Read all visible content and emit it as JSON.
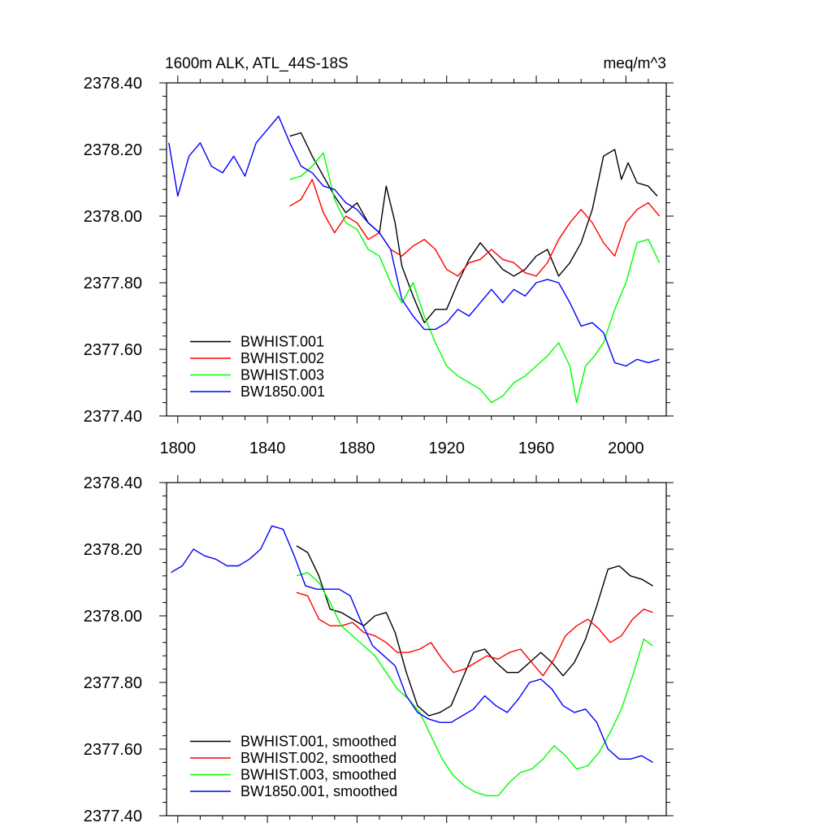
{
  "chart_data": [
    {
      "type": "line",
      "title_left": "1600m ALK, ATL_44S-18S",
      "title_right": "meq/m^3",
      "ylim": [
        2377.4,
        2378.4
      ],
      "xlim": [
        1795,
        2018
      ],
      "yticks": [
        "2377.40",
        "2377.60",
        "2377.80",
        "2378.00",
        "2378.20",
        "2378.40"
      ],
      "ytick_values": [
        2377.4,
        2377.6,
        2377.8,
        2378.0,
        2378.2,
        2378.4
      ],
      "xticks": [
        "1800",
        "1840",
        "1880",
        "1920",
        "1960",
        "2000"
      ],
      "xtick_values": [
        1800,
        1840,
        1880,
        1920,
        1960,
        2000
      ],
      "show_xtick_labels": true,
      "legend_placement": "bottom-left",
      "series": [
        {
          "name": "BWHIST.001",
          "color": "#000000",
          "x": [
            1850,
            1855,
            1860,
            1865,
            1870,
            1875,
            1880,
            1885,
            1890,
            1893,
            1897,
            1900,
            1905,
            1910,
            1915,
            1920,
            1925,
            1930,
            1935,
            1940,
            1945,
            1950,
            1955,
            1960,
            1965,
            1970,
            1975,
            1980,
            1985,
            1990,
            1995,
            1998,
            2001,
            2005,
            2010,
            2014
          ],
          "y": [
            2378.24,
            2378.25,
            2378.18,
            2378.12,
            2378.06,
            2378.01,
            2378.04,
            2377.98,
            2377.95,
            2378.09,
            2377.98,
            2377.85,
            2377.76,
            2377.68,
            2377.72,
            2377.72,
            2377.8,
            2377.87,
            2377.92,
            2377.88,
            2377.84,
            2377.82,
            2377.84,
            2377.88,
            2377.9,
            2377.82,
            2377.86,
            2377.92,
            2378.02,
            2378.18,
            2378.2,
            2378.11,
            2378.16,
            2378.1,
            2378.09,
            2378.06
          ]
        },
        {
          "name": "BWHIST.002",
          "color": "#ff0000",
          "x": [
            1850,
            1855,
            1860,
            1865,
            1870,
            1875,
            1880,
            1885,
            1890,
            1895,
            1900,
            1905,
            1910,
            1915,
            1920,
            1925,
            1930,
            1935,
            1940,
            1945,
            1950,
            1955,
            1960,
            1965,
            1970,
            1975,
            1980,
            1985,
            1990,
            1995,
            2000,
            2005,
            2010,
            2015
          ],
          "y": [
            2378.03,
            2378.05,
            2378.11,
            2378.01,
            2377.95,
            2378.0,
            2377.98,
            2377.93,
            2377.95,
            2377.9,
            2377.88,
            2377.91,
            2377.93,
            2377.9,
            2377.84,
            2377.82,
            2377.86,
            2377.87,
            2377.9,
            2377.87,
            2377.86,
            2377.83,
            2377.82,
            2377.86,
            2377.93,
            2377.98,
            2378.02,
            2377.98,
            2377.92,
            2377.88,
            2377.98,
            2378.02,
            2378.04,
            2378.0
          ]
        },
        {
          "name": "BWHIST.003",
          "color": "#00ff00",
          "x": [
            1850,
            1855,
            1860,
            1865,
            1870,
            1875,
            1880,
            1885,
            1890,
            1895,
            1900,
            1905,
            1910,
            1915,
            1920,
            1925,
            1930,
            1935,
            1940,
            1945,
            1950,
            1955,
            1960,
            1965,
            1970,
            1975,
            1978,
            1982,
            1986,
            1990,
            1995,
            2000,
            2005,
            2010,
            2015
          ],
          "y": [
            2378.11,
            2378.12,
            2378.15,
            2378.19,
            2378.05,
            2377.98,
            2377.96,
            2377.9,
            2377.88,
            2377.8,
            2377.74,
            2377.8,
            2377.7,
            2377.62,
            2377.55,
            2377.52,
            2377.5,
            2377.48,
            2377.44,
            2377.46,
            2377.5,
            2377.52,
            2377.55,
            2377.58,
            2377.62,
            2377.55,
            2377.44,
            2377.55,
            2377.58,
            2377.62,
            2377.72,
            2377.8,
            2377.92,
            2377.93,
            2377.86
          ]
        },
        {
          "name": "BW1850.001",
          "color": "#0000ff",
          "x": [
            1796,
            1800,
            1805,
            1810,
            1815,
            1820,
            1825,
            1830,
            1835,
            1840,
            1845,
            1850,
            1855,
            1860,
            1865,
            1870,
            1875,
            1880,
            1885,
            1890,
            1895,
            1900,
            1905,
            1910,
            1915,
            1920,
            1925,
            1930,
            1935,
            1940,
            1945,
            1950,
            1955,
            1960,
            1965,
            1970,
            1975,
            1980,
            1985,
            1990,
            1995,
            2000,
            2005,
            2010,
            2015
          ],
          "y": [
            2378.22,
            2378.06,
            2378.18,
            2378.22,
            2378.15,
            2378.13,
            2378.18,
            2378.12,
            2378.22,
            2378.26,
            2378.3,
            2378.22,
            2378.15,
            2378.13,
            2378.09,
            2378.08,
            2378.04,
            2378.02,
            2377.98,
            2377.95,
            2377.9,
            2377.75,
            2377.7,
            2377.66,
            2377.66,
            2377.68,
            2377.72,
            2377.7,
            2377.74,
            2377.78,
            2377.74,
            2377.78,
            2377.76,
            2377.8,
            2377.81,
            2377.8,
            2377.74,
            2377.67,
            2377.68,
            2377.65,
            2377.56,
            2377.55,
            2377.57,
            2377.56,
            2377.57
          ]
        }
      ]
    },
    {
      "type": "line",
      "ylim": [
        2377.4,
        2378.4
      ],
      "xlim": [
        1795,
        2018
      ],
      "yticks": [
        "2377.40",
        "2377.60",
        "2377.80",
        "2378.00",
        "2378.20",
        "2378.40"
      ],
      "ytick_values": [
        2377.4,
        2377.6,
        2377.8,
        2378.0,
        2378.2,
        2378.4
      ],
      "xtick_values": [
        1800,
        1840,
        1880,
        1920,
        1960,
        2000
      ],
      "show_xtick_labels": false,
      "legend_placement": "bottom-left",
      "series": [
        {
          "name": "BWHIST.001, smoothed",
          "color": "#000000",
          "x": [
            1853,
            1858,
            1863,
            1868,
            1873,
            1878,
            1883,
            1888,
            1893,
            1897,
            1902,
            1907,
            1912,
            1917,
            1922,
            1927,
            1932,
            1937,
            1942,
            1947,
            1952,
            1957,
            1962,
            1967,
            1972,
            1977,
            1982,
            1987,
            1992,
            1997,
            2002,
            2007,
            2012
          ],
          "y": [
            2378.21,
            2378.19,
            2378.12,
            2378.02,
            2378.01,
            2377.99,
            2377.97,
            2378.0,
            2378.01,
            2377.95,
            2377.83,
            2377.73,
            2377.7,
            2377.71,
            2377.73,
            2377.81,
            2377.89,
            2377.9,
            2377.86,
            2377.83,
            2377.83,
            2377.86,
            2377.89,
            2377.86,
            2377.82,
            2377.86,
            2377.93,
            2378.03,
            2378.14,
            2378.15,
            2378.12,
            2378.11,
            2378.09
          ]
        },
        {
          "name": "BWHIST.002, smoothed",
          "color": "#ff0000",
          "x": [
            1853,
            1858,
            1863,
            1868,
            1873,
            1878,
            1883,
            1888,
            1893,
            1898,
            1903,
            1908,
            1913,
            1918,
            1923,
            1928,
            1933,
            1938,
            1943,
            1948,
            1953,
            1958,
            1963,
            1968,
            1973,
            1978,
            1983,
            1988,
            1993,
            1998,
            2003,
            2008,
            2012
          ],
          "y": [
            2378.07,
            2378.06,
            2377.99,
            2377.97,
            2377.97,
            2377.98,
            2377.95,
            2377.94,
            2377.92,
            2377.89,
            2377.89,
            2377.9,
            2377.92,
            2377.87,
            2377.83,
            2377.84,
            2377.86,
            2377.88,
            2377.87,
            2377.89,
            2377.9,
            2377.86,
            2377.82,
            2377.87,
            2377.94,
            2377.97,
            2377.99,
            2377.96,
            2377.92,
            2377.94,
            2377.99,
            2378.02,
            2378.01
          ]
        },
        {
          "name": "BWHIST.003, smoothed",
          "color": "#00ff00",
          "x": [
            1853,
            1858,
            1863,
            1868,
            1873,
            1878,
            1883,
            1888,
            1893,
            1898,
            1903,
            1908,
            1913,
            1918,
            1923,
            1928,
            1933,
            1938,
            1943,
            1948,
            1953,
            1958,
            1963,
            1968,
            1973,
            1978,
            1983,
            1988,
            1993,
            1998,
            2003,
            2008,
            2012
          ],
          "y": [
            2378.12,
            2378.13,
            2378.1,
            2378.04,
            2377.97,
            2377.94,
            2377.91,
            2377.88,
            2377.83,
            2377.78,
            2377.75,
            2377.71,
            2377.64,
            2377.57,
            2377.52,
            2377.49,
            2377.47,
            2377.46,
            2377.46,
            2377.5,
            2377.53,
            2377.54,
            2377.57,
            2377.61,
            2377.58,
            2377.54,
            2377.55,
            2377.59,
            2377.65,
            2377.72,
            2377.82,
            2377.93,
            2377.91
          ]
        },
        {
          "name": "BW1850.001, smoothed",
          "color": "#0000ff",
          "x": [
            1797,
            1802,
            1807,
            1812,
            1817,
            1822,
            1827,
            1832,
            1837,
            1842,
            1847,
            1852,
            1857,
            1862,
            1867,
            1872,
            1877,
            1882,
            1887,
            1892,
            1897,
            1902,
            1907,
            1912,
            1917,
            1922,
            1927,
            1932,
            1937,
            1942,
            1947,
            1952,
            1957,
            1962,
            1967,
            1972,
            1977,
            1982,
            1987,
            1992,
            1997,
            2002,
            2007,
            2012
          ],
          "y": [
            2378.13,
            2378.15,
            2378.2,
            2378.18,
            2378.17,
            2378.15,
            2378.15,
            2378.17,
            2378.2,
            2378.27,
            2378.26,
            2378.18,
            2378.09,
            2378.08,
            2378.08,
            2378.08,
            2378.06,
            2377.98,
            2377.91,
            2377.88,
            2377.85,
            2377.76,
            2377.71,
            2377.69,
            2377.68,
            2377.68,
            2377.7,
            2377.72,
            2377.76,
            2377.73,
            2377.71,
            2377.75,
            2377.8,
            2377.81,
            2377.78,
            2377.73,
            2377.71,
            2377.72,
            2377.68,
            2377.6,
            2377.57,
            2377.57,
            2377.58,
            2377.56
          ]
        }
      ]
    }
  ]
}
